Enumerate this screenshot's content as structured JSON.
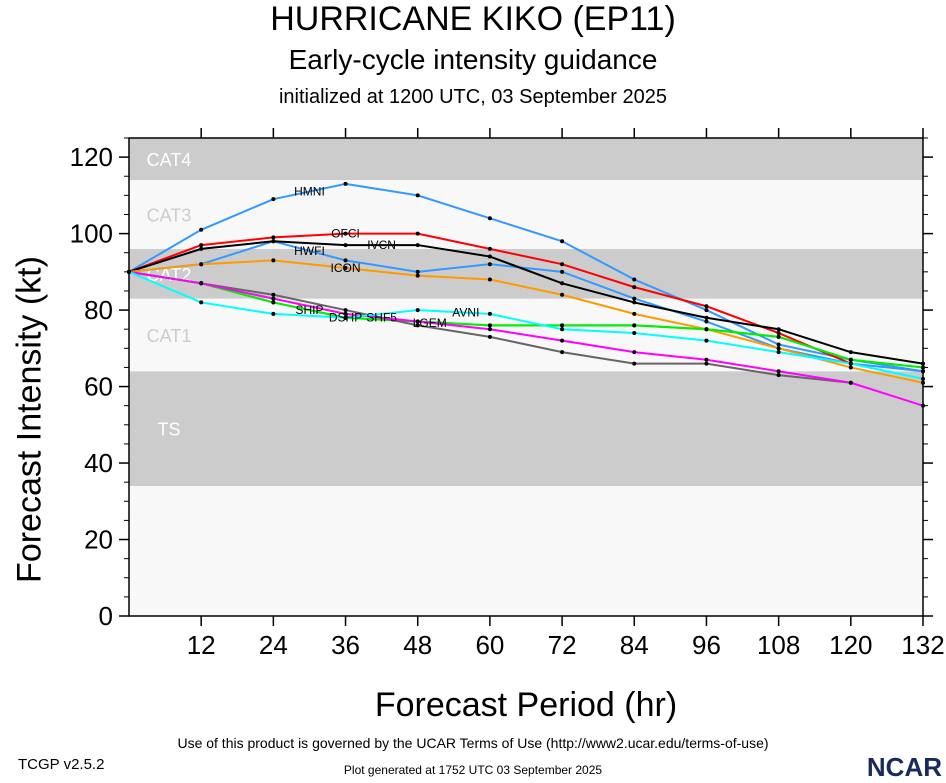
{
  "title": "HURRICANE KIKO (EP11)",
  "subtitle": "Early-cycle intensity guidance",
  "init_line": "initialized at 1200 UTC, 03 September 2025",
  "footer": {
    "version": "TCGP v2.5.2",
    "terms": "Use of this product is governed by the UCAR Terms of Use (http://www2.ucar.edu/terms-of-use)",
    "generated": "Plot generated at 1752 UTC   03 September 2025",
    "logo": "NCAR"
  },
  "chart_data": {
    "type": "line",
    "xlabel": "Forecast Period (hr)",
    "ylabel": "Forecast Intensity (kt)",
    "xlim": [
      0,
      132
    ],
    "ylim": [
      0,
      125
    ],
    "xticks": [
      12,
      24,
      36,
      48,
      60,
      72,
      84,
      96,
      108,
      120,
      132
    ],
    "yticks": [
      0,
      20,
      40,
      60,
      80,
      100,
      120
    ],
    "bands": [
      {
        "label": "TS",
        "from": 34,
        "to": 64,
        "color": "#cccccc"
      },
      {
        "label": "CAT1",
        "from": 64,
        "to": 83,
        "color": "#f8f8f8"
      },
      {
        "label": "CAT2",
        "from": 83,
        "to": 96,
        "color": "#cccccc"
      },
      {
        "label": "CAT3",
        "from": 96,
        "to": 114,
        "color": "#f8f8f8"
      },
      {
        "label": "CAT4",
        "from": 114,
        "to": 125,
        "color": "#cccccc"
      }
    ],
    "below_band_color": "#f8f8f8",
    "x": [
      0,
      12,
      24,
      36,
      48,
      60,
      72,
      84,
      96,
      108,
      120,
      132
    ],
    "series": [
      {
        "name": "HMNI",
        "color": "#3399ff",
        "values": [
          90,
          101,
          109,
          113,
          110,
          104,
          98,
          88,
          80,
          71,
          67,
          64
        ]
      },
      {
        "name": "HWFI",
        "color": "#3399ff",
        "values": [
          90,
          92,
          98,
          93,
          90,
          92,
          90,
          83,
          77,
          70,
          66,
          64
        ]
      },
      {
        "name": "OFCI",
        "color": "#ff0000",
        "values": [
          90,
          97,
          99,
          100,
          100,
          96,
          92,
          86,
          81,
          74,
          66,
          null
        ]
      },
      {
        "name": "IVCN",
        "color": "#000000",
        "values": [
          90,
          96,
          98,
          97,
          97,
          94,
          87,
          82,
          78,
          75,
          69,
          66
        ]
      },
      {
        "name": "ICON",
        "color": "#ff9900",
        "values": [
          90,
          92,
          93,
          91,
          89,
          88,
          84,
          79,
          75,
          70,
          65,
          61
        ]
      },
      {
        "name": "SHIP",
        "color": "#00ee00",
        "values": [
          90,
          87,
          82,
          78,
          77,
          76,
          76,
          76,
          75,
          73,
          67,
          65
        ]
      },
      {
        "name": "DSHP",
        "color": "#00ee00",
        "values": [
          90,
          87,
          82,
          78,
          77,
          76,
          76,
          76,
          75,
          73,
          67,
          65
        ]
      },
      {
        "name": "SHF5",
        "color": "#666666",
        "values": [
          90,
          87,
          84,
          80,
          76,
          73,
          69,
          66,
          66,
          63,
          61,
          null
        ]
      },
      {
        "name": "LGEM",
        "color": "#ff00ff",
        "values": [
          90,
          87,
          83,
          79,
          77,
          75,
          72,
          69,
          67,
          64,
          61,
          55
        ]
      },
      {
        "name": "AVNI",
        "color": "#00ffff",
        "values": [
          90,
          82,
          79,
          78,
          80,
          79,
          75,
          74,
          72,
          69,
          66,
          62
        ]
      }
    ]
  }
}
